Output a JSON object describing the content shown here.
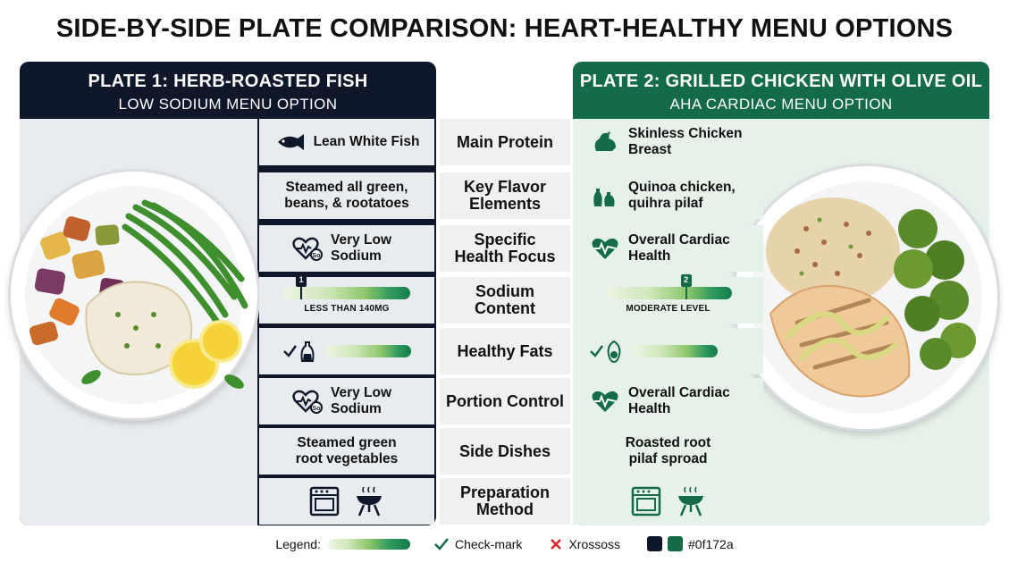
{
  "title": "SIDE-BY-SIDE PLATE COMPARISON: HEART-HEALTHY MENU OPTIONS",
  "plate1": {
    "title": "PLATE 1: HERB-ROASTED FISH",
    "subtitle": "LOW SODIUM MENU OPTION"
  },
  "plate2": {
    "title": "PLATE 2: GRILLED CHICKEN WITH OLIVE OIL",
    "subtitle": "AHA CARDIAC MENU OPTION"
  },
  "rows": [
    {
      "label": "Main Protein",
      "left": "Lean White Fish",
      "right": "Skinless Chicken Breast",
      "left_icon": "fish-icon",
      "right_icon": "chicken-icon"
    },
    {
      "label": "Key Flavor Elements",
      "left": "Steamed all green, beans, & rootatoes",
      "right": "Quinoa chicken, quihra pilaf",
      "right_icon": "oil-bottles-icon"
    },
    {
      "label": "Specific Health Focus",
      "left": "Very Low Sodium",
      "right": "Overall Cardiac Health",
      "left_icon": "heart-so-icon",
      "right_icon": "heart-pulse-icon"
    },
    {
      "label": "Sodium Content",
      "left_bar": {
        "label": "LESS THAN 140MG",
        "marker": "1",
        "level": 0.1
      },
      "right_bar": {
        "label": "MODERATE LEVEL",
        "marker": "2",
        "level": 0.6
      }
    },
    {
      "label": "Healthy Fats",
      "left_icon": "oil-bottle-icon",
      "right_icon": "avocado-icon",
      "left_level": 1,
      "right_level": 1
    },
    {
      "label": "Portion Control",
      "left": "Very Low Sodium",
      "right": "Overall Cardiac Health",
      "left_icon": "heart-so-icon",
      "right_icon": "heart-pulse-icon"
    },
    {
      "label": "Side Dishes",
      "left": "Steamed green root vegetables",
      "right": "Roasted root pilaf sproad"
    },
    {
      "label": "Preparation Method",
      "left_icons": [
        "oven-icon",
        "grill-icon"
      ],
      "right_icons": [
        "oven-icon",
        "grill-icon"
      ]
    }
  ],
  "legend": {
    "label": "Legend:",
    "check": "Check-mark",
    "cross": "Xrossoss",
    "color": "#0f172a"
  },
  "colors": {
    "navy": "#0f172a",
    "green": "#136b47"
  }
}
